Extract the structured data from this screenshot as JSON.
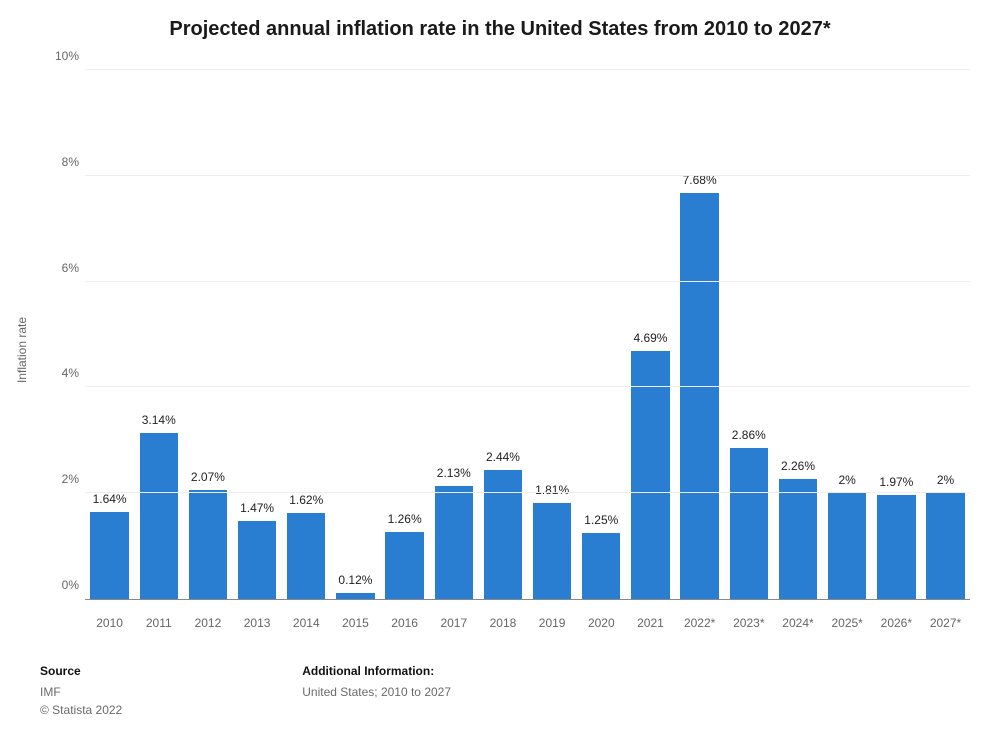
{
  "chart": {
    "type": "bar",
    "title": "Projected annual inflation rate in the United States from 2010 to 2027*",
    "title_fontsize": 20,
    "title_color": "#1a1a1a",
    "y_axis_title": "Inflation rate",
    "background_color": "#ffffff",
    "grid_color": "#eeeeee",
    "axis_line_color": "#888888",
    "tick_color": "#666666",
    "tick_fontsize": 12,
    "label_fontsize": 12,
    "bar_color": "#2a7ed2",
    "bar_width_ratio": 0.78,
    "ylim": [
      0,
      10
    ],
    "ytick_step": 2,
    "ytick_format": "{v}%",
    "y_ticks": [
      "0%",
      "2%",
      "4%",
      "6%",
      "8%",
      "10%"
    ],
    "categories": [
      "2010",
      "2011",
      "2012",
      "2013",
      "2014",
      "2015",
      "2016",
      "2017",
      "2018",
      "2019",
      "2020",
      "2021",
      "2022*",
      "2023*",
      "2024*",
      "2025*",
      "2026*",
      "2027*"
    ],
    "values": [
      1.64,
      3.14,
      2.07,
      1.47,
      1.62,
      0.12,
      1.26,
      2.13,
      2.44,
      1.81,
      1.25,
      4.69,
      7.68,
      2.86,
      2.26,
      2.0,
      1.97,
      2.0
    ],
    "value_labels": [
      "1.64%",
      "3.14%",
      "2.07%",
      "1.47%",
      "1.62%",
      "0.12%",
      "1.26%",
      "2.13%",
      "2.44%",
      "1.81%",
      "1.25%",
      "4.69%",
      "7.68%",
      "2.86%",
      "2.26%",
      "2%",
      "1.97%",
      "2%"
    ]
  },
  "footer": {
    "source_head": "Source",
    "source_body": "IMF",
    "copyright": "© Statista 2022",
    "additional_head": "Additional Information:",
    "additional_body": "United States; 2010 to 2027"
  }
}
